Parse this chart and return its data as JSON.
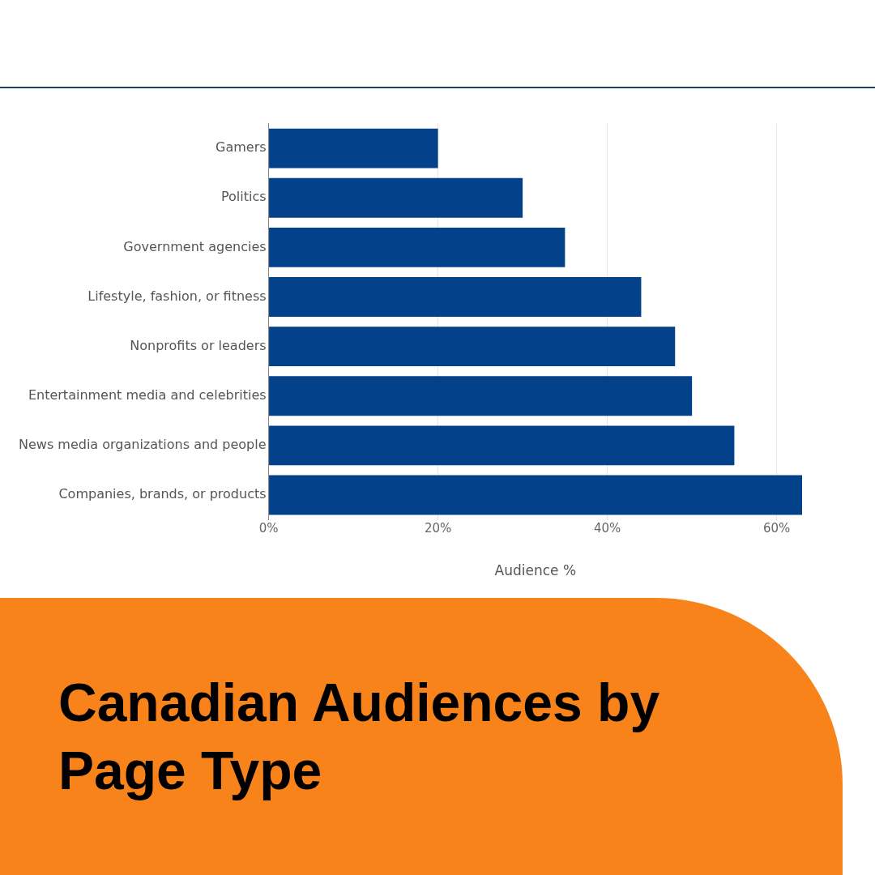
{
  "chart_data": {
    "type": "bar",
    "orientation": "horizontal",
    "title": "Canadian Audiences by Page Type",
    "xlabel": "Audience %",
    "categories": [
      "Gamers",
      "Politics",
      "Government agencies",
      "Lifestyle, fashion, or fitness",
      "Nonprofits or leaders",
      "Entertainment media and celebrities",
      "News media organizations and people",
      "Companies, brands, or products"
    ],
    "values": [
      20,
      30,
      35,
      44,
      48,
      50,
      55,
      63
    ],
    "color": "#03418a",
    "xlim": [
      0,
      63
    ],
    "xticks": [
      {
        "value": 0,
        "label": "0%"
      },
      {
        "value": 20,
        "label": "20%"
      },
      {
        "value": 40,
        "label": "40%"
      },
      {
        "value": 60,
        "label": "60%"
      }
    ],
    "grid": "x"
  }
}
